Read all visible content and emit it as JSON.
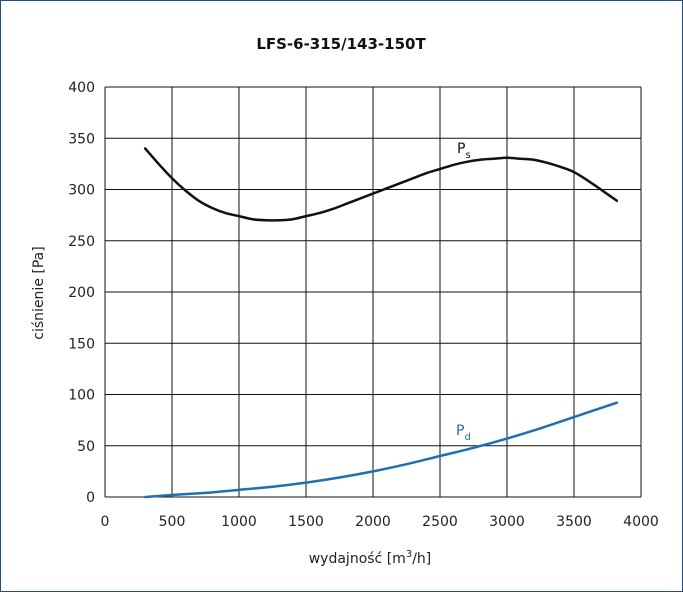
{
  "chart_data": {
    "type": "line",
    "title": "LFS-6-315/143-150T",
    "xlabel": "wydajność [m",
    "xlabel_sup": "3",
    "xlabel_end": "/h]",
    "ylabel": "ciśnienie [Pa]",
    "xlim": [
      0,
      4000
    ],
    "ylim": [
      0,
      400
    ],
    "xticks": [
      "0",
      "500",
      "1000",
      "1500",
      "2000",
      "2500",
      "3000",
      "3500",
      "4000"
    ],
    "yticks": [
      "0",
      "50",
      "100",
      "150",
      "200",
      "250",
      "300",
      "350",
      "400"
    ],
    "grid": true,
    "series": [
      {
        "name": "P",
        "sub": "s",
        "color": "#111111",
        "x": [
          300,
          400,
          500,
          600,
          700,
          800,
          900,
          1000,
          1100,
          1200,
          1300,
          1400,
          1500,
          1600,
          1700,
          1800,
          1900,
          2000,
          2100,
          2200,
          2300,
          2400,
          2500,
          2600,
          2700,
          2800,
          2900,
          3000,
          3100,
          3200,
          3300,
          3400,
          3500,
          3600,
          3700,
          3820
        ],
        "y": [
          340,
          325,
          311,
          299,
          289,
          282,
          277,
          274,
          271,
          270,
          270,
          271,
          274,
          277,
          281,
          286,
          291,
          296,
          301,
          306,
          311,
          316,
          320,
          324,
          327,
          329,
          330,
          331,
          330,
          329,
          326,
          322,
          317,
          309,
          300,
          289
        ]
      },
      {
        "name": "P",
        "sub": "d",
        "color": "#1f6fb2",
        "x": [
          300,
          500,
          750,
          1000,
          1250,
          1500,
          1750,
          2000,
          2250,
          2500,
          2750,
          3000,
          3250,
          3500,
          3820
        ],
        "y": [
          0,
          2,
          4,
          7,
          10,
          14,
          19,
          25,
          32,
          40,
          48,
          57,
          67,
          78,
          92
        ]
      }
    ]
  }
}
